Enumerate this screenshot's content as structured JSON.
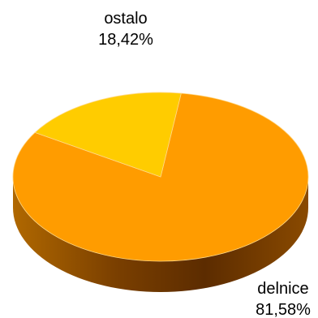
{
  "chart_data": {
    "type": "pie",
    "style": "3d",
    "slices": [
      {
        "label": "delnice",
        "value_text": "81,58%",
        "value": 81.58,
        "color": "#ff9c00",
        "side_color": "#a85a00"
      },
      {
        "label": "ostalo",
        "value_text": "18,42%",
        "value": 18.42,
        "color": "#ffcc00",
        "side_color": "#b38f00"
      }
    ],
    "legend": "none"
  }
}
